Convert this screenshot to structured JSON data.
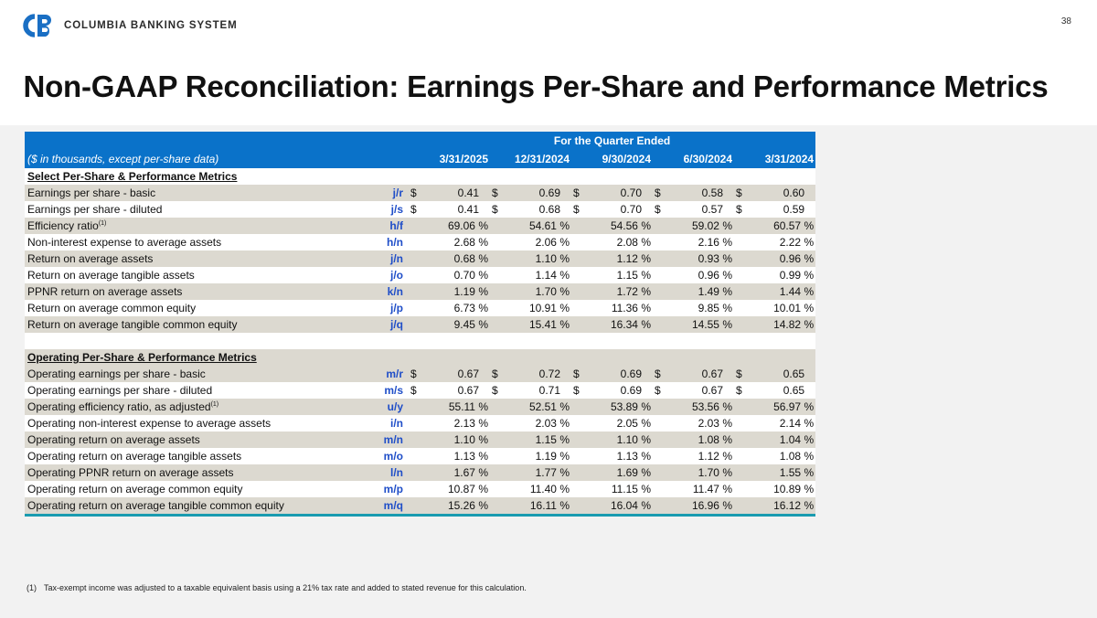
{
  "header": {
    "company_name": "COLUMBIA BANKING SYSTEM",
    "logo_icon": "cb-logo-icon",
    "page_number": "38",
    "title": "Non-GAAP Reconciliation: Earnings Per-Share and Performance Metrics"
  },
  "table": {
    "period_header": "For the Quarter Ended",
    "units_label": "($ in thousands, except per-share data)",
    "columns": [
      "3/31/2025",
      "12/31/2024",
      "9/30/2024",
      "6/30/2024",
      "3/31/2024"
    ],
    "sections": [
      {
        "title": "Select Per-Share & Performance Metrics",
        "rows": [
          {
            "label": "Earnings per share - basic",
            "footnote": "",
            "ref": "j/r",
            "currency": "$",
            "suffix": "",
            "values": [
              "0.41",
              "0.69",
              "0.70",
              "0.58",
              "0.60"
            ]
          },
          {
            "label": "Earnings per share - diluted",
            "footnote": "",
            "ref": "j/s",
            "currency": "$",
            "suffix": "",
            "values": [
              "0.41",
              "0.68",
              "0.70",
              "0.57",
              "0.59"
            ]
          },
          {
            "label": "Efficiency ratio",
            "footnote": "(1)",
            "ref": "h/f",
            "currency": "",
            "suffix": "%",
            "values": [
              "69.06",
              "54.61",
              "54.56",
              "59.02",
              "60.57"
            ]
          },
          {
            "label": "Non-interest expense to average assets",
            "footnote": "",
            "ref": "h/n",
            "currency": "",
            "suffix": "%",
            "values": [
              "2.68",
              "2.06",
              "2.08",
              "2.16",
              "2.22"
            ]
          },
          {
            "label": "Return on average assets",
            "footnote": "",
            "ref": "j/n",
            "currency": "",
            "suffix": "%",
            "values": [
              "0.68",
              "1.10",
              "1.12",
              "0.93",
              "0.96"
            ]
          },
          {
            "label": "Return on average tangible assets",
            "footnote": "",
            "ref": "j/o",
            "currency": "",
            "suffix": "%",
            "values": [
              "0.70",
              "1.14",
              "1.15",
              "0.96",
              "0.99"
            ]
          },
          {
            "label": "PPNR return on average assets",
            "footnote": "",
            "ref": "k/n",
            "currency": "",
            "suffix": "%",
            "values": [
              "1.19",
              "1.70",
              "1.72",
              "1.49",
              "1.44"
            ]
          },
          {
            "label": "Return on average common equity",
            "footnote": "",
            "ref": "j/p",
            "currency": "",
            "suffix": "%",
            "values": [
              "6.73",
              "10.91",
              "11.36",
              "9.85",
              "10.01"
            ]
          },
          {
            "label": "Return on average tangible common equity",
            "footnote": "",
            "ref": "j/q",
            "currency": "",
            "suffix": "%",
            "values": [
              "9.45",
              "15.41",
              "16.34",
              "14.55",
              "14.82"
            ]
          }
        ]
      },
      {
        "title": "Operating Per-Share & Performance Metrics",
        "rows": [
          {
            "label": "Operating earnings per share - basic",
            "footnote": "",
            "ref": "m/r",
            "currency": "$",
            "suffix": "",
            "values": [
              "0.67",
              "0.72",
              "0.69",
              "0.67",
              "0.65"
            ]
          },
          {
            "label": "Operating earnings per share - diluted",
            "footnote": "",
            "ref": "m/s",
            "currency": "$",
            "suffix": "",
            "values": [
              "0.67",
              "0.71",
              "0.69",
              "0.67",
              "0.65"
            ]
          },
          {
            "label": "Operating efficiency ratio, as adjusted",
            "footnote": "(1)",
            "ref": "u/y",
            "currency": "",
            "suffix": "%",
            "values": [
              "55.11",
              "52.51",
              "53.89",
              "53.56",
              "56.97"
            ]
          },
          {
            "label": "Operating non-interest expense to average assets",
            "footnote": "",
            "ref": "i/n",
            "currency": "",
            "suffix": "%",
            "values": [
              "2.13",
              "2.03",
              "2.05",
              "2.03",
              "2.14"
            ]
          },
          {
            "label": "Operating return on average assets",
            "footnote": "",
            "ref": "m/n",
            "currency": "",
            "suffix": "%",
            "values": [
              "1.10",
              "1.15",
              "1.10",
              "1.08",
              "1.04"
            ]
          },
          {
            "label": "Operating return on average tangible assets",
            "footnote": "",
            "ref": "m/o",
            "currency": "",
            "suffix": "%",
            "values": [
              "1.13",
              "1.19",
              "1.13",
              "1.12",
              "1.08"
            ]
          },
          {
            "label": "Operating PPNR return on average assets",
            "footnote": "",
            "ref": "l/n",
            "currency": "",
            "suffix": "%",
            "values": [
              "1.67",
              "1.77",
              "1.69",
              "1.70",
              "1.55"
            ]
          },
          {
            "label": "Operating return on average common equity",
            "footnote": "",
            "ref": "m/p",
            "currency": "",
            "suffix": "%",
            "values": [
              "10.87",
              "11.40",
              "11.15",
              "11.47",
              "10.89"
            ]
          },
          {
            "label": "Operating return on average tangible common equity",
            "footnote": "",
            "ref": "m/q",
            "currency": "",
            "suffix": "%",
            "values": [
              "15.26",
              "16.11",
              "16.04",
              "16.96",
              "16.12"
            ]
          }
        ]
      }
    ]
  },
  "footnote": {
    "number": "(1)",
    "text": "Tax-exempt income was adjusted to a taxable equivalent basis using a 21% tax rate and added to stated revenue for this calculation."
  },
  "colors": {
    "brand_blue": "#0a72c9",
    "ref_blue": "#1f4ec8",
    "band_gray": "#dcd9d0",
    "rule_teal": "#1a9bb0"
  }
}
